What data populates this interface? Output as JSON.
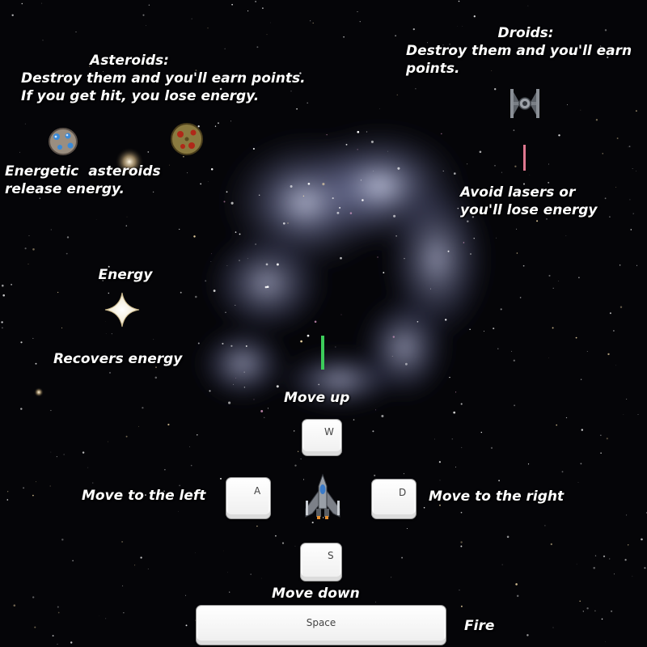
{
  "asteroids": {
    "title": "Asteroids:",
    "description": "Destroy them and you'll earn points.\nIf you get hit, you lose energy.",
    "energetic_note": "Energetic  asteroids\nrelease energy."
  },
  "droids": {
    "title": "Droids:",
    "description": "Destroy them and you'll earn\npoints.",
    "laser_note": "Avoid lasers or\nyou'll lose energy"
  },
  "energy": {
    "title": "Energy",
    "description": "Recovers energy"
  },
  "controls": {
    "up": {
      "label": "Move up",
      "key": "W"
    },
    "left": {
      "label": "Move to the left",
      "key": "A"
    },
    "right": {
      "label": "Move to the right",
      "key": "D"
    },
    "down": {
      "label": "Move down",
      "key": "S"
    },
    "fire": {
      "label": "Fire",
      "key": "Space"
    }
  },
  "colors": {
    "enemy_laser": "#e07890",
    "player_laser": "#3ccc5a",
    "text": "#ffffff"
  }
}
